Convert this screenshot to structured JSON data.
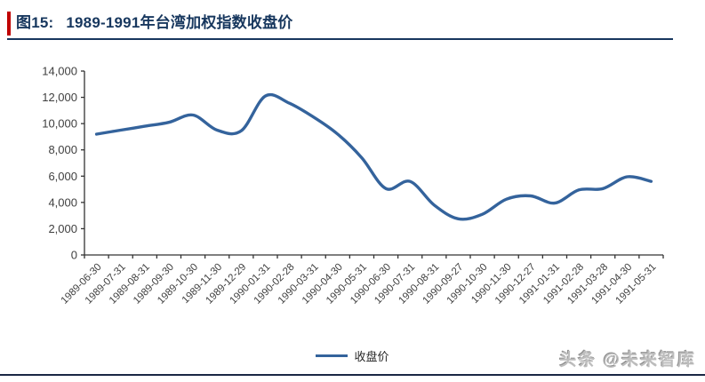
{
  "header": {
    "figure_label": "图15:",
    "title": "1989-1991年台湾加权指数收盘价"
  },
  "legend": {
    "label": "收盘价"
  },
  "footer": {
    "watermark": "头条 @未来智库"
  },
  "colors": {
    "title_navy": "#17375E",
    "accent_red": "#C00000",
    "line_blue": "#34639C",
    "axis_dark": "#333333",
    "tick_label_gray": "#3F3F3F",
    "bottom_rule_dark": "#1A2744",
    "watermark_gray": "#BDBDBD"
  },
  "chart_data": {
    "type": "line",
    "title": "1989-1991年台湾加权指数收盘价",
    "xlabel": "",
    "ylabel": "",
    "ylim": [
      0,
      14000
    ],
    "ytick_step": 2000,
    "grid": false,
    "legend_position": "bottom",
    "y_format": "thousands-comma",
    "x_label_rotation": -45,
    "categories": [
      "1989-06-30",
      "1989-07-31",
      "1989-08-31",
      "1989-09-30",
      "1989-10-30",
      "1989-11-30",
      "1989-12-29",
      "1990-01-31",
      "1990-02-28",
      "1990-03-31",
      "1990-04-30",
      "1990-05-31",
      "1990-06-30",
      "1990-07-31",
      "1990-08-31",
      "1990-09-27",
      "1990-10-30",
      "1990-11-30",
      "1990-12-27",
      "1991-01-31",
      "1991-02-28",
      "1991-03-28",
      "1991-04-30",
      "1991-05-31"
    ],
    "series": [
      {
        "name": "收盘价",
        "values": [
          9200,
          9500,
          9800,
          10100,
          10650,
          9500,
          9450,
          12100,
          11550,
          10500,
          9200,
          7400,
          5050,
          5600,
          3800,
          2750,
          3100,
          4250,
          4500,
          3950,
          4950,
          5050,
          5950,
          5600
        ]
      }
    ]
  }
}
